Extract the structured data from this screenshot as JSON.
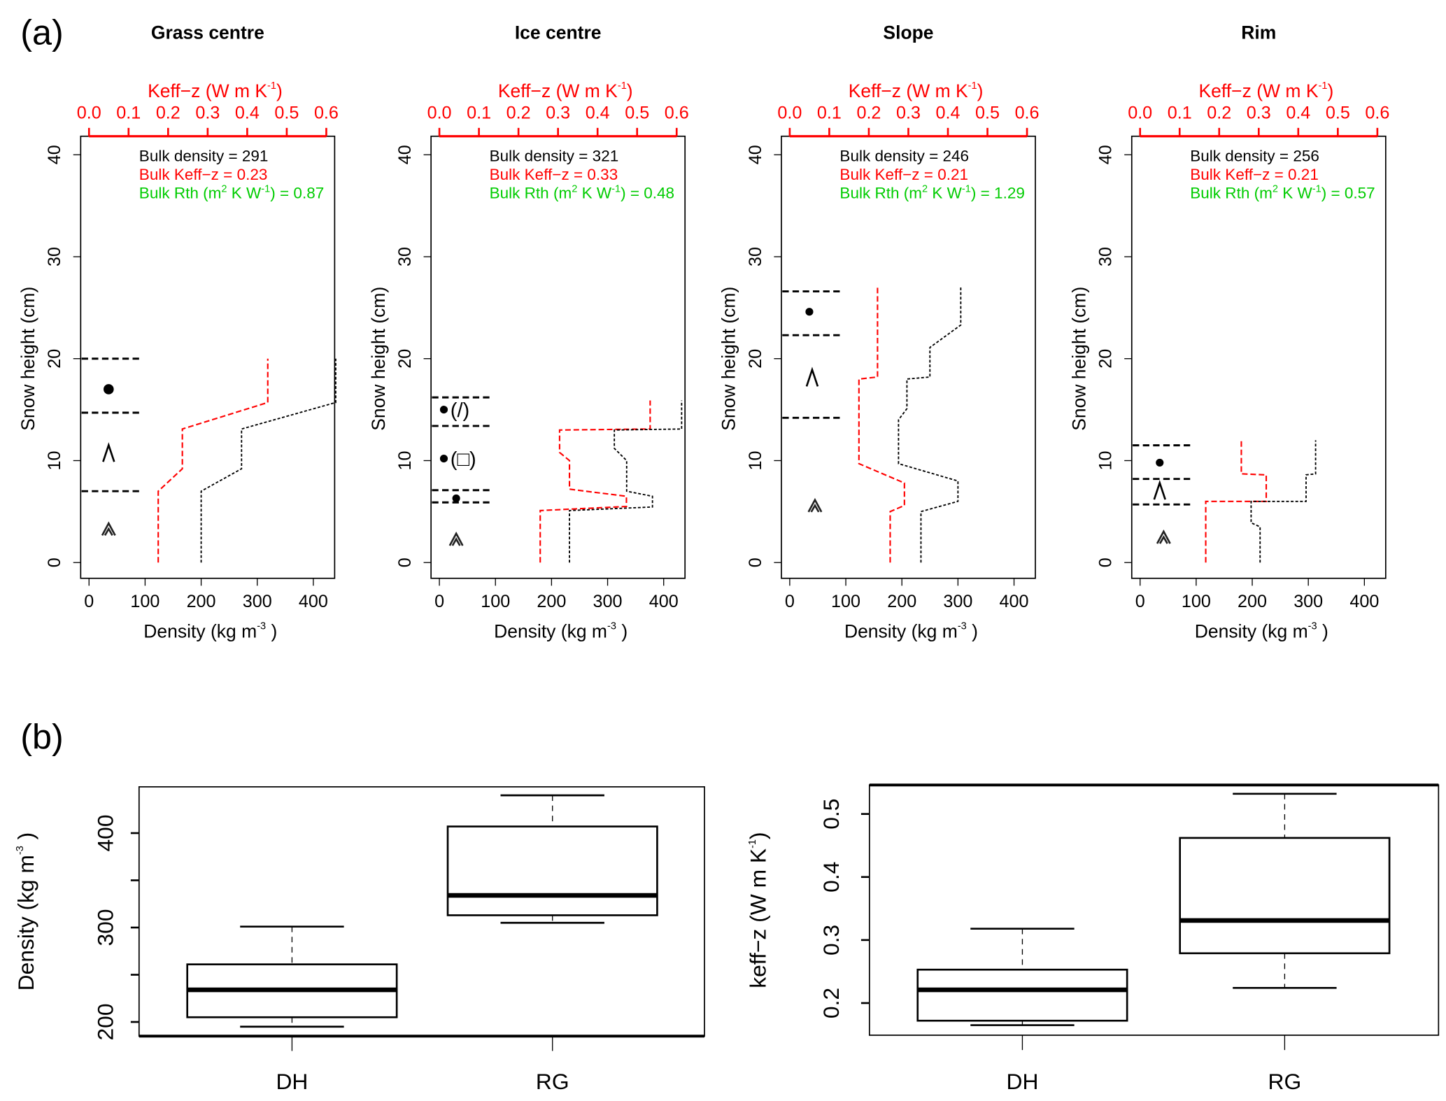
{
  "panel_labels": {
    "a": "(a)",
    "b": "(b)"
  },
  "common": {
    "top_axis_title": "Keff−z (W m K",
    "top_axis_sup": "-1",
    "top_axis_close": ")",
    "y_label": "Snow height (cm)",
    "x_label": "Density (kg m",
    "x_label_sup": "-3",
    "x_label_close": " )",
    "bulk_density_label": "Bulk density = ",
    "bulk_keff_label": "Bulk Keff−z = ",
    "bulk_rth_label": "Bulk Rth (m",
    "bulk_rth_sup1": "2",
    "bulk_rth_mid": " K W",
    "bulk_rth_sup2": "-1",
    "bulk_rth_close": ") = ",
    "colors": {
      "density": "#000000",
      "keff": "#ff0000",
      "rth": "#00cc00"
    }
  },
  "chart_data": [
    {
      "type": "line",
      "title": "Grass centre",
      "xlabel": "Density (kg m-3)",
      "ylabel": "Snow height (cm)",
      "top_xlabel": "Keff-z (W m K-1)",
      "xlim": [
        0,
        450
      ],
      "ylim": [
        0,
        40
      ],
      "top_xlim": [
        0,
        0.6
      ],
      "x_ticks": [
        "0",
        "100",
        "200",
        "300",
        "400"
      ],
      "y_ticks": [
        "0",
        "10",
        "20",
        "30",
        "40"
      ],
      "top_ticks": [
        "0.0",
        "0.1",
        "0.2",
        "0.3",
        "0.4",
        "0.5",
        "0.6"
      ],
      "bulk": {
        "density": "291",
        "keff": "0.23",
        "rth": "0.87"
      },
      "series": [
        {
          "name": "Density",
          "points": [
            [
              200,
              0
            ],
            [
              200,
              7
            ],
            [
              272,
              9.2
            ],
            [
              272,
              13.1
            ],
            [
              440,
              15.7
            ],
            [
              440,
              20
            ]
          ]
        },
        {
          "name": "Keff-z",
          "points": [
            [
              0.175,
              0
            ],
            [
              0.175,
              7
            ],
            [
              0.236,
              9.2
            ],
            [
              0.236,
              13.1
            ],
            [
              0.452,
              15.7
            ],
            [
              0.452,
              20
            ]
          ]
        }
      ],
      "layer_boundaries": [
        20,
        14.7,
        7.0
      ],
      "symbols": [
        {
          "type": "dot",
          "x": 35,
          "y": 17,
          "big": true
        },
        {
          "type": "caret",
          "x": 35,
          "y": 10.7
        },
        {
          "type": "double-caret",
          "x": 35,
          "y": 3.3
        }
      ]
    },
    {
      "type": "line",
      "title": "Ice centre",
      "xlabel": "Density (kg m-3)",
      "ylabel": "Snow height (cm)",
      "top_xlabel": "Keff-z (W m K-1)",
      "xlim": [
        0,
        450
      ],
      "ylim": [
        0,
        40
      ],
      "top_xlim": [
        0,
        0.6
      ],
      "x_ticks": [
        "0",
        "100",
        "200",
        "300",
        "400"
      ],
      "y_ticks": [
        "0",
        "10",
        "20",
        "30",
        "40"
      ],
      "top_ticks": [
        "0.0",
        "0.1",
        "0.2",
        "0.3",
        "0.4",
        "0.5",
        "0.6"
      ],
      "bulk": {
        "density": "321",
        "keff": "0.33",
        "rth": "0.48"
      },
      "series": [
        {
          "name": "Density",
          "points": [
            [
              232,
              0
            ],
            [
              232,
              5.1
            ],
            [
              380,
              5.45
            ],
            [
              380,
              6.5
            ],
            [
              334,
              7.0
            ],
            [
              334,
              10
            ],
            [
              312,
              11.2
            ],
            [
              312,
              13
            ],
            [
              432,
              13.1
            ],
            [
              432,
              15.9
            ]
          ]
        },
        {
          "name": "Keff-z",
          "points": [
            [
              0.255,
              0
            ],
            [
              0.255,
              5.1
            ],
            [
              0.473,
              5.5
            ],
            [
              0.473,
              6.5
            ],
            [
              0.329,
              7.2
            ],
            [
              0.329,
              10
            ],
            [
              0.304,
              10.8
            ],
            [
              0.304,
              13
            ],
            [
              0.533,
              13.1
            ],
            [
              0.533,
              15.9
            ]
          ]
        }
      ],
      "layer_boundaries": [
        16.2,
        13.4,
        7.1,
        5.9
      ],
      "symbols": [
        {
          "type": "dot",
          "x": 8,
          "y": 15.0,
          "label": "(/)"
        },
        {
          "type": "dot",
          "x": 8,
          "y": 10.2,
          "label": "(□)"
        },
        {
          "type": "dot",
          "x": 30,
          "y": 6.3
        },
        {
          "type": "double-caret",
          "x": 30,
          "y": 2.3
        }
      ]
    },
    {
      "type": "line",
      "title": "Slope",
      "xlabel": "Density (kg m-3)",
      "ylabel": "Snow height (cm)",
      "top_xlabel": "Keff-z (W m K-1)",
      "xlim": [
        0,
        450
      ],
      "ylim": [
        0,
        40
      ],
      "top_xlim": [
        0,
        0.6
      ],
      "x_ticks": [
        "0",
        "100",
        "200",
        "300",
        "400"
      ],
      "y_ticks": [
        "0",
        "10",
        "20",
        "30",
        "40"
      ],
      "top_ticks": [
        "0.0",
        "0.1",
        "0.2",
        "0.3",
        "0.4",
        "0.5",
        "0.6"
      ],
      "bulk": {
        "density": "246",
        "keff": "0.21",
        "rth": "1.29"
      },
      "series": [
        {
          "name": "Density",
          "points": [
            [
              234,
              0
            ],
            [
              234,
              5
            ],
            [
              300,
              6
            ],
            [
              300,
              8
            ],
            [
              194,
              9.7
            ],
            [
              194,
              14
            ],
            [
              209,
              15.1
            ],
            [
              209,
              18
            ],
            [
              250,
              18.2
            ],
            [
              250,
              21.1
            ],
            [
              305,
              23.3
            ],
            [
              305,
              27
            ]
          ]
        },
        {
          "name": "Keff-z",
          "points": [
            [
              0.254,
              0
            ],
            [
              0.254,
              5
            ],
            [
              0.29,
              5.6
            ],
            [
              0.29,
              7.8
            ],
            [
              0.175,
              9.7
            ],
            [
              0.175,
              18
            ],
            [
              0.222,
              18.2
            ],
            [
              0.222,
              27
            ]
          ]
        }
      ],
      "layer_boundaries": [
        26.6,
        22.3,
        14.2
      ],
      "symbols": [
        {
          "type": "dot",
          "x": 35,
          "y": 24.6
        },
        {
          "type": "caret",
          "x": 40,
          "y": 18.1
        },
        {
          "type": "double-caret",
          "x": 45,
          "y": 5.6
        }
      ]
    },
    {
      "type": "line",
      "title": "Rim",
      "xlabel": "Density (kg m-3)",
      "ylabel": "Snow height (cm)",
      "top_xlabel": "Keff-z (W m K-1)",
      "xlim": [
        0,
        450
      ],
      "ylim": [
        0,
        40
      ],
      "top_xlim": [
        0,
        0.6
      ],
      "x_ticks": [
        "0",
        "100",
        "200",
        "300",
        "400"
      ],
      "y_ticks": [
        "0",
        "10",
        "20",
        "30",
        "40"
      ],
      "top_ticks": [
        "0.0",
        "0.1",
        "0.2",
        "0.3",
        "0.4",
        "0.5",
        "0.6"
      ],
      "bulk": {
        "density": "256",
        "keff": "0.21",
        "rth": "0.57"
      },
      "series": [
        {
          "name": "Density",
          "points": [
            [
              214,
              0
            ],
            [
              214,
              3.5
            ],
            [
              198,
              3.9
            ],
            [
              198,
              6
            ],
            [
              296,
              6
            ],
            [
              296,
              8.6
            ],
            [
              313,
              8.7
            ],
            [
              313,
              12
            ]
          ]
        },
        {
          "name": "Keff-z",
          "points": [
            [
              0.166,
              0
            ],
            [
              0.166,
              6
            ],
            [
              0.319,
              6
            ],
            [
              0.319,
              8.6
            ],
            [
              0.256,
              8.7
            ],
            [
              0.256,
              12
            ]
          ]
        }
      ],
      "layer_boundaries": [
        11.5,
        8.2,
        5.7
      ],
      "symbols": [
        {
          "type": "dot",
          "x": 35,
          "y": 9.8
        },
        {
          "type": "caret",
          "x": 35,
          "y": 7.0
        },
        {
          "type": "double-caret",
          "x": 42,
          "y": 2.5
        }
      ]
    },
    {
      "type": "box",
      "title": "",
      "xlabel": "",
      "ylabel": "Density (kg m",
      "ylabel_sup": "-3",
      "ylabel_close": " )",
      "ylim": [
        185,
        449
      ],
      "y_ticks": [
        200,
        250,
        300,
        350,
        400
      ],
      "y_tick_labels": [
        "200",
        "",
        "300",
        "",
        "400"
      ],
      "categories": [
        "DH",
        "RG"
      ],
      "boxes": [
        {
          "category": "DH",
          "min": 195,
          "q1": 205,
          "median": 234,
          "q3": 261,
          "max": 301
        },
        {
          "category": "RG",
          "min": 305,
          "q1": 313,
          "median": 334,
          "q3": 407,
          "max": 440
        }
      ]
    },
    {
      "type": "box",
      "title": "",
      "xlabel": "",
      "ylabel": "keff−z (W m K",
      "ylabel_sup": "-1",
      "ylabel_close": ")",
      "ylim": [
        0.149,
        0.546
      ],
      "y_ticks": [
        0.2,
        0.3,
        0.4,
        0.5
      ],
      "y_tick_labels": [
        "0.2",
        "0.3",
        "0.4",
        "0.5"
      ],
      "categories": [
        "DH",
        "RG"
      ],
      "boxes": [
        {
          "category": "DH",
          "min": 0.165,
          "q1": 0.172,
          "median": 0.221,
          "q3": 0.253,
          "max": 0.318
        },
        {
          "category": "RG",
          "min": 0.224,
          "q1": 0.279,
          "median": 0.331,
          "q3": 0.462,
          "max": 0.532
        }
      ]
    }
  ]
}
